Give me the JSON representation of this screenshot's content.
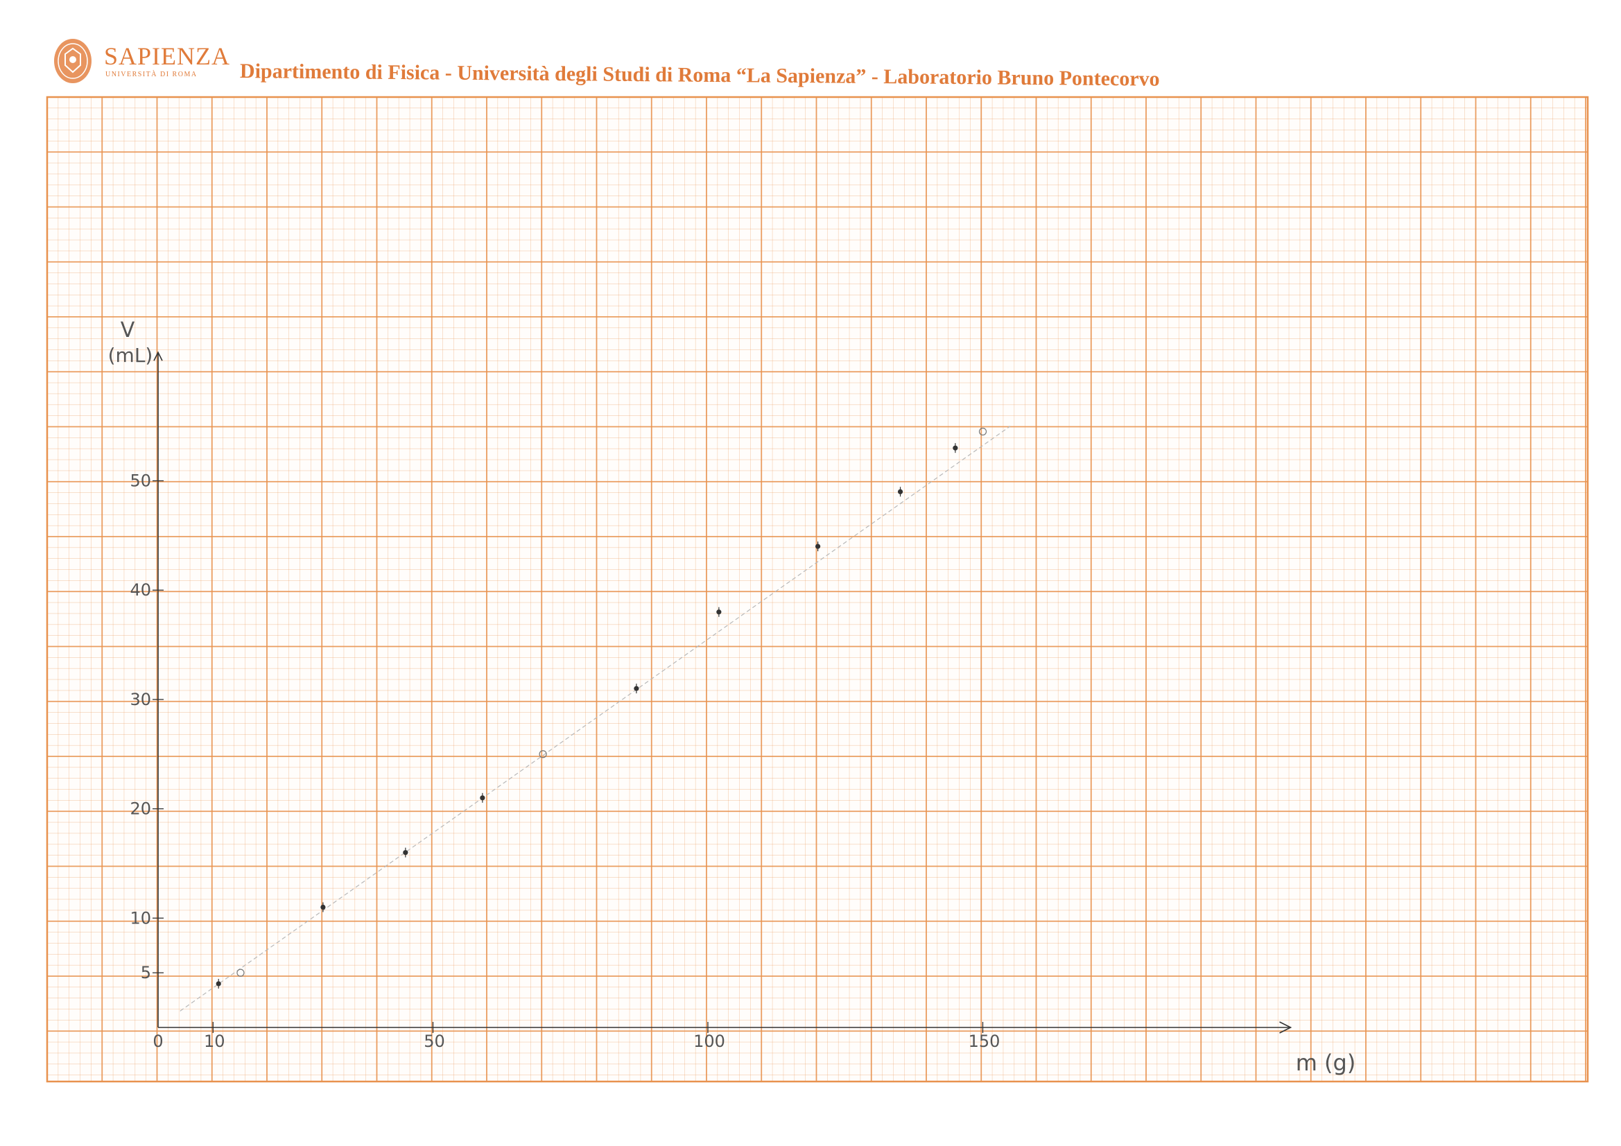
{
  "header": {
    "brand_name": "SAPIENZA",
    "brand_subtitle": "UNIVERSITÀ DI ROMA",
    "title": "Dipartimento di Fisica - Università degli Studi di Roma “La Sapienza” - Laboratorio Bruno Pontecorvo",
    "logo_icon": "sapienza-seal-icon",
    "accent_color": "#e07b3a"
  },
  "paper": {
    "grid_color": "#e8924f",
    "ink_color": "#333333"
  },
  "chart_data": {
    "type": "scatter",
    "title": "",
    "xlabel": "m (g)",
    "ylabel": "V\n(mL)",
    "xlim": [
      0,
      207
    ],
    "ylim": [
      0,
      62
    ],
    "x_ticks": [
      {
        "value": 0,
        "label": "0"
      },
      {
        "value": 10,
        "label": "10"
      },
      {
        "value": 50,
        "label": "50"
      },
      {
        "value": 100,
        "label": "100"
      },
      {
        "value": 150,
        "label": "150"
      }
    ],
    "y_ticks": [
      {
        "value": 5,
        "label": "5"
      },
      {
        "value": 10,
        "label": "10"
      },
      {
        "value": 20,
        "label": "20"
      },
      {
        "value": 30,
        "label": "30"
      },
      {
        "value": 40,
        "label": "40"
      },
      {
        "value": 50,
        "label": "50"
      }
    ],
    "grid": true,
    "series": [
      {
        "name": "",
        "x": [
          11,
          30,
          45,
          59,
          87,
          102,
          120,
          135,
          145
        ],
        "y": [
          4,
          11,
          16,
          21,
          31,
          38,
          44,
          49,
          53
        ]
      }
    ],
    "fit_line": {
      "x": [
        4,
        155
      ],
      "y": [
        1.5,
        55
      ]
    },
    "fit_markers": [
      {
        "x": 15,
        "y": 5
      },
      {
        "x": 70,
        "y": 25
      },
      {
        "x": 150,
        "y": 54.5
      }
    ]
  }
}
